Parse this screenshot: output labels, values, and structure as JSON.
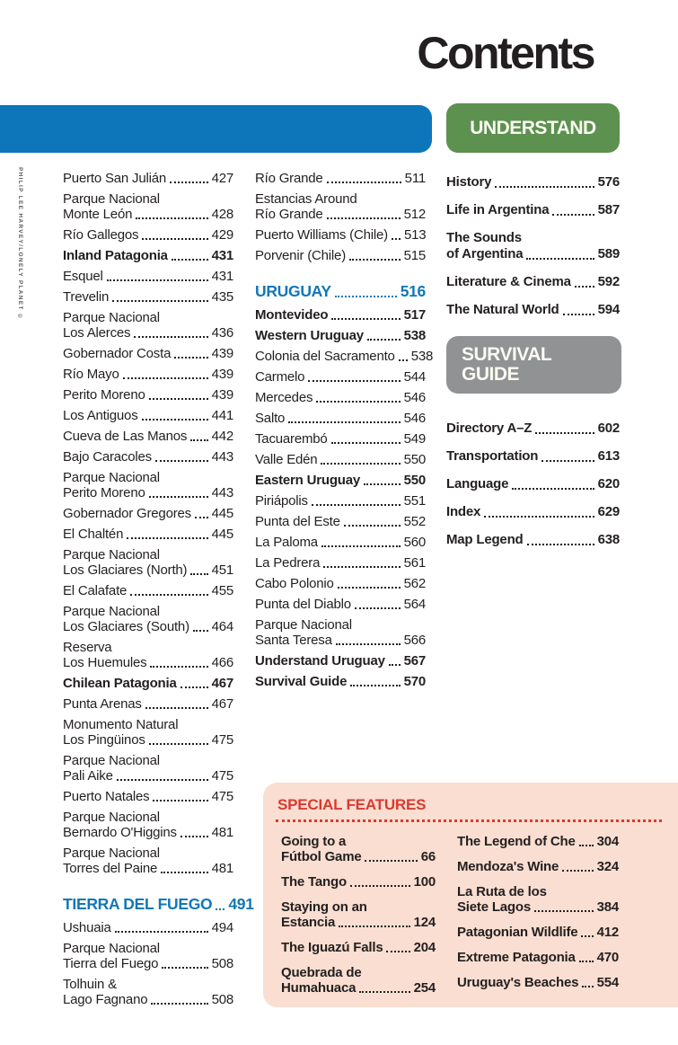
{
  "title": "Contents",
  "photo_credit": "PHILIP LEE HARVEY/LONELY PLANET ©",
  "badges": {
    "understand": "UNDERSTAND",
    "survival_line1": "SURVIVAL",
    "survival_line2": "GUIDE"
  },
  "colors": {
    "blue_bar": "#0d76bb",
    "green_badge": "#5d9150",
    "gray_badge": "#909294",
    "chapter_heading_blue": "#1177b6",
    "special_features_red": "#d93a30",
    "special_features_pink": "#f9ded1",
    "text": "#231f20"
  },
  "toc": {
    "left": [
      {
        "label": "Puerto San Julián",
        "page": "427"
      },
      {
        "label": "Parque Nacional",
        "label2": "Monte León",
        "page": "428"
      },
      {
        "label": "Río Gallegos",
        "page": "429"
      },
      {
        "label": "Inland Patagonia",
        "page": "431",
        "bold": true
      },
      {
        "label": "Esquel",
        "page": "431"
      },
      {
        "label": "Trevelin",
        "page": "435"
      },
      {
        "label": "Parque Nacional",
        "label2": "Los Alerces",
        "page": "436"
      },
      {
        "label": "Gobernador Costa",
        "page": "439"
      },
      {
        "label": "Río Mayo",
        "page": "439"
      },
      {
        "label": "Perito Moreno",
        "page": "439"
      },
      {
        "label": "Los Antiguos",
        "page": "441"
      },
      {
        "label": "Cueva de Las Manos",
        "page": "442"
      },
      {
        "label": "Bajo Caracoles",
        "page": "443"
      },
      {
        "label": "Parque Nacional",
        "label2": "Perito Moreno",
        "page": "443"
      },
      {
        "label": "Gobernador Gregores",
        "page": "445"
      },
      {
        "label": "El Chaltén",
        "page": "445"
      },
      {
        "label": "Parque Nacional",
        "label2": "Los Glaciares (North)",
        "page": "451"
      },
      {
        "label": "El Calafate",
        "page": "455"
      },
      {
        "label": "Parque Nacional",
        "label2": "Los Glaciares (South)",
        "page": "464"
      },
      {
        "label": "Reserva",
        "label2": "Los Huemules",
        "page": "466"
      },
      {
        "label": "Chilean Patagonia",
        "page": "467",
        "bold": true
      },
      {
        "label": "Punta Arenas",
        "page": "467"
      },
      {
        "label": "Monumento Natural",
        "label2": "Los Pingüinos",
        "page": "475"
      },
      {
        "label": "Parque Nacional",
        "label2": "Pali Aike",
        "page": "475"
      },
      {
        "label": "Puerto Natales",
        "page": "475"
      },
      {
        "label": "Parque Nacional",
        "label2": "Bernardo O'Higgins",
        "page": "481"
      },
      {
        "label": "Parque Nacional",
        "label2": "Torres del Paine",
        "page": "481"
      },
      {
        "label": "TIERRA DEL FUEGO",
        "page": "491",
        "chapter": true
      },
      {
        "label": "Ushuaia",
        "page": "494"
      },
      {
        "label": "Parque Nacional",
        "label2": "Tierra del Fuego",
        "page": "508"
      },
      {
        "label": "Tolhuin &",
        "label2": "Lago Fagnano",
        "page": "508"
      }
    ],
    "middle": [
      {
        "label": "Río Grande",
        "page": "511"
      },
      {
        "label": "Estancias Around",
        "label2": "Río Grande",
        "page": "512"
      },
      {
        "label": "Puerto Williams (Chile)",
        "page": "513"
      },
      {
        "label": "Porvenir (Chile)",
        "page": "515"
      },
      {
        "label": "URUGUAY",
        "page": "516",
        "chapter": true
      },
      {
        "label": "Montevideo",
        "page": "517",
        "bold": true
      },
      {
        "label": "Western Uruguay",
        "page": "538",
        "bold": true
      },
      {
        "label": "Colonia del Sacramento",
        "page": "538"
      },
      {
        "label": "Carmelo",
        "page": "544"
      },
      {
        "label": "Mercedes",
        "page": "546"
      },
      {
        "label": "Salto",
        "page": "546"
      },
      {
        "label": "Tacuarembó",
        "page": "549"
      },
      {
        "label": "Valle Edén",
        "page": "550"
      },
      {
        "label": "Eastern Uruguay",
        "page": "550",
        "bold": true
      },
      {
        "label": "Piriápolis",
        "page": "551"
      },
      {
        "label": "Punta del Este",
        "page": "552"
      },
      {
        "label": "La Paloma",
        "page": "560"
      },
      {
        "label": "La Pedrera",
        "page": "561"
      },
      {
        "label": "Cabo Polonio",
        "page": "562"
      },
      {
        "label": "Punta del Diablo",
        "page": "564"
      },
      {
        "label": "Parque Nacional",
        "label2": "Santa Teresa",
        "page": "566"
      },
      {
        "label": "Understand Uruguay",
        "page": "567",
        "bold": true
      },
      {
        "label": "Survival Guide",
        "page": "570",
        "bold": true
      }
    ],
    "understand_section": [
      {
        "label": "History",
        "page": "576",
        "bold": true
      },
      {
        "label": "Life in Argentina",
        "page": "587",
        "bold": true
      },
      {
        "label": "The Sounds",
        "label2": "of Argentina",
        "page": "589",
        "bold": true
      },
      {
        "label": "Literature & Cinema",
        "page": "592",
        "bold": true
      },
      {
        "label": "The Natural World",
        "page": "594",
        "bold": true
      }
    ],
    "survival_section": [
      {
        "label": "Directory A–Z",
        "page": "602",
        "bold": true
      },
      {
        "label": "Transportation",
        "page": "613",
        "bold": true
      },
      {
        "label": "Language",
        "page": "620",
        "bold": true
      },
      {
        "label": "Index",
        "page": "629",
        "bold": true
      },
      {
        "label": "Map Legend",
        "page": "638",
        "bold": true
      }
    ]
  },
  "special_features": {
    "title": "SPECIAL FEATURES",
    "left": [
      {
        "label": "Going to a",
        "label2": "Fútbol Game",
        "page": "66"
      },
      {
        "label": "The Tango",
        "page": "100"
      },
      {
        "label": "Staying on an",
        "label2": "Estancia",
        "page": "124"
      },
      {
        "label": "The Iguazú Falls",
        "page": "204"
      },
      {
        "label": "Quebrada de",
        "label2": "Humahuaca",
        "page": "254"
      }
    ],
    "right": [
      {
        "label": "The Legend of Che",
        "page": "304"
      },
      {
        "label": "Mendoza's Wine",
        "page": "324"
      },
      {
        "label": "La Ruta de los",
        "label2": "Siete Lagos",
        "page": "384"
      },
      {
        "label": "Patagonian Wildlife",
        "page": "412"
      },
      {
        "label": "Extreme Patagonia",
        "page": "470"
      },
      {
        "label": "Uruguay's Beaches",
        "page": "554"
      }
    ]
  }
}
